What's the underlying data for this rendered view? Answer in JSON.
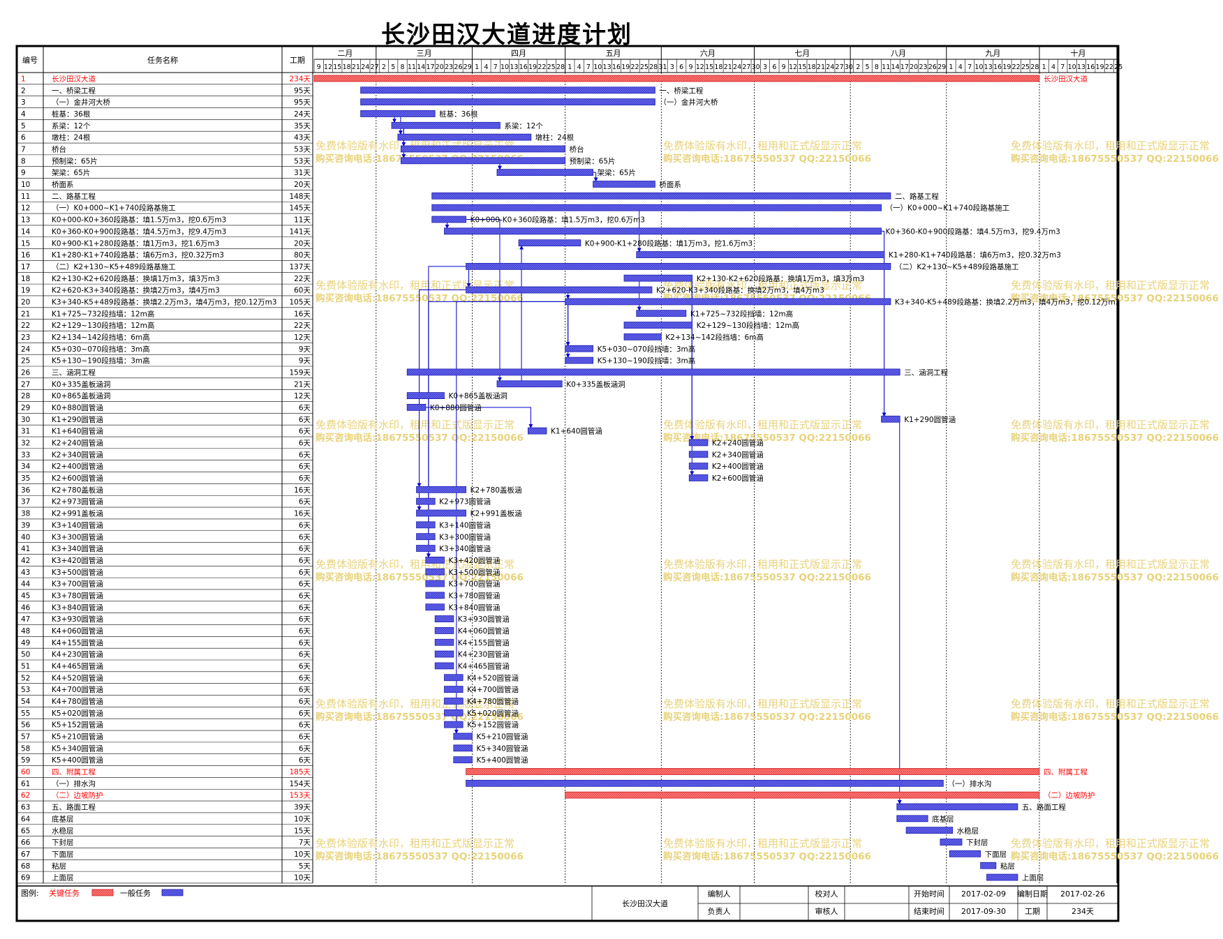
{
  "title": "长沙田汉大道进度计划",
  "header": {
    "col_no": "编号",
    "col_name": "任务名称",
    "col_dur": "工期"
  },
  "colors": {
    "critical": "#ff6b6b",
    "normal": "#5a5ae6",
    "critical_text": "#ff0000",
    "link": "#0000cc",
    "watermark": "#e8d27a"
  },
  "watermark": [
    "免费体验版有水印，租用和正式版显示正常",
    "购买咨询电话:18675550537 QQ:22150066"
  ],
  "chart_data": {
    "type": "gantt",
    "x_axis": {
      "months": [
        {
          "label": "二月",
          "days": [
            9,
            12,
            15,
            18,
            21,
            24,
            27
          ]
        },
        {
          "label": "三月",
          "days": [
            2,
            5,
            8,
            11,
            14,
            17,
            20,
            23,
            26,
            29
          ]
        },
        {
          "label": "四月",
          "days": [
            1,
            4,
            7,
            10,
            13,
            16,
            19,
            22,
            25,
            28
          ]
        },
        {
          "label": "五月",
          "days": [
            1,
            4,
            7,
            10,
            13,
            16,
            19,
            22,
            25,
            28,
            31
          ]
        },
        {
          "label": "六月",
          "days": [
            3,
            6,
            9,
            12,
            15,
            18,
            21,
            24,
            27,
            30
          ]
        },
        {
          "label": "七月",
          "days": [
            3,
            6,
            9,
            12,
            15,
            18,
            21,
            24,
            27,
            30
          ]
        },
        {
          "label": "八月",
          "days": [
            2,
            5,
            8,
            11,
            14,
            17,
            20,
            23,
            26,
            29
          ]
        },
        {
          "label": "九月",
          "days": [
            1,
            4,
            7,
            10,
            13,
            16,
            19,
            22,
            25,
            28
          ]
        },
        {
          "label": "十月",
          "days": [
            1,
            4,
            7,
            10,
            13,
            16,
            19,
            22,
            25
          ]
        }
      ],
      "start": "2017-02-09",
      "end": "2017-10-26"
    },
    "tasks": [
      {
        "no": "1",
        "name": "长沙田汉大道",
        "dur": "234天",
        "start": "2017-02-09",
        "end": "2017-09-30",
        "critical": true,
        "label": "长沙田汉大道"
      },
      {
        "no": "2",
        "name": "一、桥梁工程",
        "dur": "95天",
        "start": "2017-02-24",
        "end": "2017-05-29",
        "critical": false,
        "label": "一、桥梁工程"
      },
      {
        "no": "3",
        "name": "（一）金井河大桥",
        "dur": "95天",
        "start": "2017-02-24",
        "end": "2017-05-29",
        "critical": false,
        "label": "（一）金井河大桥"
      },
      {
        "no": "4",
        "name": "桩基：36根",
        "dur": "24天",
        "start": "2017-02-24",
        "end": "2017-03-19",
        "critical": false,
        "label": "桩基：36根"
      },
      {
        "no": "5",
        "name": "系梁：12个",
        "dur": "35天",
        "start": "2017-03-06",
        "end": "2017-04-09",
        "critical": false,
        "label": "系梁：12个"
      },
      {
        "no": "6",
        "name": "墩柱：24根",
        "dur": "43天",
        "start": "2017-03-08",
        "end": "2017-04-19",
        "critical": false,
        "label": "墩柱：24根"
      },
      {
        "no": "7",
        "name": "桥台",
        "dur": "53天",
        "start": "2017-03-09",
        "end": "2017-04-30",
        "critical": false,
        "label": "桥台"
      },
      {
        "no": "8",
        "name": "预制梁：65片",
        "dur": "53天",
        "start": "2017-03-09",
        "end": "2017-04-30",
        "critical": false,
        "label": "预制梁：65片"
      },
      {
        "no": "9",
        "name": "架梁：65片",
        "dur": "31天",
        "start": "2017-04-09",
        "end": "2017-05-09",
        "critical": false,
        "label": "架梁：65片"
      },
      {
        "no": "10",
        "name": "桥面系",
        "dur": "20天",
        "start": "2017-05-10",
        "end": "2017-05-29",
        "critical": false,
        "label": "桥面系"
      },
      {
        "no": "11",
        "name": "二、路基工程",
        "dur": "148天",
        "start": "2017-03-19",
        "end": "2017-08-13",
        "critical": false,
        "label": "二、路基工程"
      },
      {
        "no": "12",
        "name": "（一）K0+000~K1+740段路基施工",
        "dur": "145天",
        "start": "2017-03-19",
        "end": "2017-08-10",
        "critical": false,
        "label": "（一）K0+000~K1+740段路基施工"
      },
      {
        "no": "13",
        "name": "K0+000-K0+360段路基：填1.5万m3，挖0.6万m3",
        "dur": "11天",
        "start": "2017-03-19",
        "end": "2017-03-29",
        "critical": false,
        "label": "K0+000-K0+360段路基：填1.5万m3，挖0.6万m3"
      },
      {
        "no": "14",
        "name": "K0+360-K0+900段路基：填4.5万m3，挖9.4万m3",
        "dur": "141天",
        "start": "2017-03-23",
        "end": "2017-08-10",
        "critical": false,
        "label": "K0+360-K0+900段路基：填4.5万m3，挖9.4万m3"
      },
      {
        "no": "15",
        "name": "K0+900-K1+280段路基：填1万m3，挖1.6万m3",
        "dur": "20天",
        "start": "2017-04-16",
        "end": "2017-05-05",
        "critical": false,
        "label": "K0+900-K1+280段路基：填1万m3，挖1.6万m3"
      },
      {
        "no": "16",
        "name": "K1+280-K1+740段路基：填6万m3，挖0.32万m3",
        "dur": "80天",
        "start": "2017-05-24",
        "end": "2017-08-11",
        "critical": false,
        "label": "K1+280-K1+740段路基：填6万m3，挖0.32万m3"
      },
      {
        "no": "17",
        "name": "（二）K2+130~K5+489段路基施工",
        "dur": "137天",
        "start": "2017-03-30",
        "end": "2017-08-13",
        "critical": false,
        "label": "（二）K2+130~K5+489段路基施工"
      },
      {
        "no": "18",
        "name": "K2+130-K2+620段路基：换填1万m3，填3万m3",
        "dur": "22天",
        "start": "2017-05-20",
        "end": "2017-06-10",
        "critical": false,
        "label": "K2+130-K2+620段路基：换填1万m3，填3万m3"
      },
      {
        "no": "19",
        "name": "K2+620-K3+340段路基：换填2万m3，填4万m3",
        "dur": "60天",
        "start": "2017-03-30",
        "end": "2017-05-28",
        "critical": false,
        "label": "K2+620-K3+340段路基：换填2万m3，填4万m3"
      },
      {
        "no": "20",
        "name": "K3+340-K5+489段路基：换填2.2万m3，填4万m3，挖0.12万m3",
        "dur": "105天",
        "start": "2017-05-01",
        "end": "2017-08-13",
        "critical": false,
        "label": "K3+340-K5+489段路基：换填2.2万m3，填4万m3，挖0.12万m3"
      },
      {
        "no": "21",
        "name": "K1+725~732段挡墙：12m高",
        "dur": "16天",
        "start": "2017-05-24",
        "end": "2017-06-08",
        "critical": false,
        "label": "K1+725~732段挡墙：12m高"
      },
      {
        "no": "22",
        "name": "K2+129~130段挡墙：12m高",
        "dur": "22天",
        "start": "2017-05-20",
        "end": "2017-06-10",
        "critical": false,
        "label": "K2+129~130段挡墙：12m高"
      },
      {
        "no": "23",
        "name": "K2+134~142段挡墙：6m高",
        "dur": "12天",
        "start": "2017-05-20",
        "end": "2017-05-31",
        "critical": false,
        "label": "K2+134~142段挡墙：6m高"
      },
      {
        "no": "24",
        "name": "K5+030~070段挡墙：3m高",
        "dur": "9天",
        "start": "2017-05-01",
        "end": "2017-05-09",
        "critical": false,
        "label": "K5+030~070段挡墙：3m高"
      },
      {
        "no": "25",
        "name": "K5+130~190段挡墙：3m高",
        "dur": "9天",
        "start": "2017-05-01",
        "end": "2017-05-09",
        "critical": false,
        "label": "K5+130~190段挡墙：3m高"
      },
      {
        "no": "26",
        "name": "三、涵洞工程",
        "dur": "159天",
        "start": "2017-03-11",
        "end": "2017-08-16",
        "critical": false,
        "label": "三、涵洞工程"
      },
      {
        "no": "27",
        "name": "K0+335盖板涵洞",
        "dur": "21天",
        "start": "2017-04-09",
        "end": "2017-04-29",
        "critical": false,
        "label": "K0+335盖板涵洞"
      },
      {
        "no": "28",
        "name": "K0+865盖板涵洞",
        "dur": "12天",
        "start": "2017-03-11",
        "end": "2017-03-22",
        "critical": false,
        "label": "K0+865盖板涵洞"
      },
      {
        "no": "29",
        "name": "K0+880圆管涵",
        "dur": "6天",
        "start": "2017-03-11",
        "end": "2017-03-16",
        "critical": false,
        "label": "K0+880圆管涵"
      },
      {
        "no": "30",
        "name": "K1+290圆管涵",
        "dur": "6天",
        "start": "2017-08-11",
        "end": "2017-08-16",
        "critical": false,
        "label": "K1+290圆管涵"
      },
      {
        "no": "31",
        "name": "K1+640圆管涵",
        "dur": "6天",
        "start": "2017-04-19",
        "end": "2017-04-24",
        "critical": false,
        "label": "K1+640圆管涵"
      },
      {
        "no": "32",
        "name": "K2+240圆管涵",
        "dur": "6天",
        "start": "2017-06-10",
        "end": "2017-06-15",
        "critical": false,
        "label": "K2+240圆管涵"
      },
      {
        "no": "33",
        "name": "K2+340圆管涵",
        "dur": "6天",
        "start": "2017-06-10",
        "end": "2017-06-15",
        "critical": false,
        "label": "K2+340圆管涵"
      },
      {
        "no": "34",
        "name": "K2+400圆管涵",
        "dur": "6天",
        "start": "2017-06-10",
        "end": "2017-06-15",
        "critical": false,
        "label": "K2+400圆管涵"
      },
      {
        "no": "35",
        "name": "K2+600圆管涵",
        "dur": "6天",
        "start": "2017-06-10",
        "end": "2017-06-15",
        "critical": false,
        "label": "K2+600圆管涵"
      },
      {
        "no": "36",
        "name": "K2+780盖板涵",
        "dur": "16天",
        "start": "2017-03-14",
        "end": "2017-03-29",
        "critical": false,
        "label": "K2+780盖板涵"
      },
      {
        "no": "37",
        "name": "K2+973圆管涵",
        "dur": "6天",
        "start": "2017-03-14",
        "end": "2017-03-19",
        "critical": false,
        "label": "K2+973圆管涵"
      },
      {
        "no": "38",
        "name": "K2+991盖板涵",
        "dur": "16天",
        "start": "2017-03-14",
        "end": "2017-03-29",
        "critical": false,
        "label": "K2+991盖板涵"
      },
      {
        "no": "39",
        "name": "K3+140圆管涵",
        "dur": "6天",
        "start": "2017-03-14",
        "end": "2017-03-19",
        "critical": false,
        "label": "K3+140圆管涵"
      },
      {
        "no": "40",
        "name": "K3+300圆管涵",
        "dur": "6天",
        "start": "2017-03-14",
        "end": "2017-03-19",
        "critical": false,
        "label": "K3+300圆管涵"
      },
      {
        "no": "41",
        "name": "K3+340圆管涵",
        "dur": "6天",
        "start": "2017-03-14",
        "end": "2017-03-19",
        "critical": false,
        "label": "K3+340圆管涵"
      },
      {
        "no": "42",
        "name": "K3+420圆管涵",
        "dur": "6天",
        "start": "2017-03-17",
        "end": "2017-03-22",
        "critical": false,
        "label": "K3+420圆管涵"
      },
      {
        "no": "43",
        "name": "K3+500圆管涵",
        "dur": "6天",
        "start": "2017-03-17",
        "end": "2017-03-22",
        "critical": false,
        "label": "K3+500圆管涵"
      },
      {
        "no": "44",
        "name": "K3+700圆管涵",
        "dur": "6天",
        "start": "2017-03-17",
        "end": "2017-03-22",
        "critical": false,
        "label": "K3+700圆管涵"
      },
      {
        "no": "45",
        "name": "K3+780圆管涵",
        "dur": "6天",
        "start": "2017-03-17",
        "end": "2017-03-22",
        "critical": false,
        "label": "K3+780圆管涵"
      },
      {
        "no": "46",
        "name": "K3+840圆管涵",
        "dur": "6天",
        "start": "2017-03-17",
        "end": "2017-03-22",
        "critical": false,
        "label": "K3+840圆管涵"
      },
      {
        "no": "47",
        "name": "K3+930圆管涵",
        "dur": "6天",
        "start": "2017-03-20",
        "end": "2017-03-25",
        "critical": false,
        "label": "K3+930圆管涵"
      },
      {
        "no": "48",
        "name": "K4+060圆管涵",
        "dur": "6天",
        "start": "2017-03-20",
        "end": "2017-03-25",
        "critical": false,
        "label": "K4+060圆管涵"
      },
      {
        "no": "49",
        "name": "K4+155圆管涵",
        "dur": "6天",
        "start": "2017-03-20",
        "end": "2017-03-25",
        "critical": false,
        "label": "K4+155圆管涵"
      },
      {
        "no": "50",
        "name": "K4+230圆管涵",
        "dur": "6天",
        "start": "2017-03-20",
        "end": "2017-03-25",
        "critical": false,
        "label": "K4+230圆管涵"
      },
      {
        "no": "51",
        "name": "K4+465圆管涵",
        "dur": "6天",
        "start": "2017-03-20",
        "end": "2017-03-25",
        "critical": false,
        "label": "K4+465圆管涵"
      },
      {
        "no": "52",
        "name": "K4+520圆管涵",
        "dur": "6天",
        "start": "2017-03-23",
        "end": "2017-03-28",
        "critical": false,
        "label": "K4+520圆管涵"
      },
      {
        "no": "53",
        "name": "K4+700圆管涵",
        "dur": "6天",
        "start": "2017-03-23",
        "end": "2017-03-28",
        "critical": false,
        "label": "K4+700圆管涵"
      },
      {
        "no": "54",
        "name": "K4+780圆管涵",
        "dur": "6天",
        "start": "2017-03-23",
        "end": "2017-03-28",
        "critical": false,
        "label": "K4+780圆管涵"
      },
      {
        "no": "55",
        "name": "K5+020圆管涵",
        "dur": "6天",
        "start": "2017-03-23",
        "end": "2017-03-28",
        "critical": false,
        "label": "K5+020圆管涵"
      },
      {
        "no": "56",
        "name": "K5+152圆管涵",
        "dur": "6天",
        "start": "2017-03-23",
        "end": "2017-03-28",
        "critical": false,
        "label": "K5+152圆管涵"
      },
      {
        "no": "57",
        "name": "K5+210圆管涵",
        "dur": "6天",
        "start": "2017-03-26",
        "end": "2017-03-31",
        "critical": false,
        "label": "K5+210圆管涵"
      },
      {
        "no": "58",
        "name": "K5+340圆管涵",
        "dur": "6天",
        "start": "2017-03-26",
        "end": "2017-03-31",
        "critical": false,
        "label": "K5+340圆管涵"
      },
      {
        "no": "59",
        "name": "K5+400圆管涵",
        "dur": "6天",
        "start": "2017-03-26",
        "end": "2017-03-31",
        "critical": false,
        "label": "K5+400圆管涵"
      },
      {
        "no": "60",
        "name": "四、附属工程",
        "dur": "185天",
        "start": "2017-03-30",
        "end": "2017-09-30",
        "critical": true,
        "label": "四、附属工程"
      },
      {
        "no": "61",
        "name": "（一）排水沟",
        "dur": "154天",
        "start": "2017-03-30",
        "end": "2017-08-30",
        "critical": false,
        "label": "（一）排水沟"
      },
      {
        "no": "62",
        "name": "（二）边坡防护",
        "dur": "153天",
        "start": "2017-05-01",
        "end": "2017-09-30",
        "critical": true,
        "label": "（二）边坡防护"
      },
      {
        "no": "63",
        "name": "五、路面工程",
        "dur": "39天",
        "start": "2017-08-16",
        "end": "2017-09-23",
        "critical": false,
        "label": "五、路面工程"
      },
      {
        "no": "64",
        "name": "底基层",
        "dur": "10天",
        "start": "2017-08-16",
        "end": "2017-08-25",
        "critical": false,
        "label": "底基层"
      },
      {
        "no": "65",
        "name": "水稳层",
        "dur": "15天",
        "start": "2017-08-19",
        "end": "2017-09-02",
        "critical": false,
        "label": "水稳层"
      },
      {
        "no": "66",
        "name": "下封层",
        "dur": "7天",
        "start": "2017-08-30",
        "end": "2017-09-05",
        "critical": false,
        "label": "下封层"
      },
      {
        "no": "67",
        "name": "下面层",
        "dur": "10天",
        "start": "2017-09-02",
        "end": "2017-09-11",
        "critical": false,
        "label": "下面层"
      },
      {
        "no": "68",
        "name": "粘层",
        "dur": "5天",
        "start": "2017-09-12",
        "end": "2017-09-16",
        "critical": false,
        "label": "粘层"
      },
      {
        "no": "69",
        "name": "上面层",
        "dur": "10天",
        "start": "2017-09-14",
        "end": "2017-09-23",
        "critical": false,
        "label": "上面层"
      }
    ],
    "links": [
      [
        "4",
        "5"
      ],
      [
        "4",
        "6"
      ],
      [
        "5",
        "7"
      ],
      [
        "5",
        "8"
      ],
      [
        "8",
        "9"
      ],
      [
        "9",
        "10"
      ],
      [
        "13",
        "14"
      ],
      [
        "14",
        "30"
      ],
      [
        "16",
        "30"
      ],
      [
        "12",
        "16"
      ],
      [
        "17",
        "19"
      ],
      [
        "18",
        "21"
      ],
      [
        "19",
        "20"
      ],
      [
        "20",
        "24"
      ],
      [
        "20",
        "25"
      ],
      [
        "19",
        "36"
      ],
      [
        "19",
        "38"
      ],
      [
        "17",
        "42"
      ],
      [
        "18",
        "32"
      ],
      [
        "18",
        "35"
      ],
      [
        "27",
        "15"
      ],
      [
        "29",
        "31"
      ],
      [
        "13",
        "27"
      ],
      [
        "20",
        "42"
      ],
      [
        "20",
        "57"
      ],
      [
        "30",
        "63"
      ]
    ]
  },
  "legend": {
    "label": "图例:",
    "critical": "关键任务",
    "normal": "一般任务"
  },
  "footer": {
    "project": "长沙田汉大道",
    "compiler_label": "编制人",
    "compiler": "",
    "reviewer_label": "校对人",
    "reviewer": "",
    "owner_label": "负责人",
    "owner": "",
    "auditor_label": "审核人",
    "auditor": "",
    "start_label": "开始时间",
    "start": "2017-02-09",
    "end_label": "结束时间",
    "end": "2017-09-30",
    "date_label": "编制日期",
    "date": "2017-02-26",
    "dur_label": "工期",
    "dur": "234天"
  }
}
